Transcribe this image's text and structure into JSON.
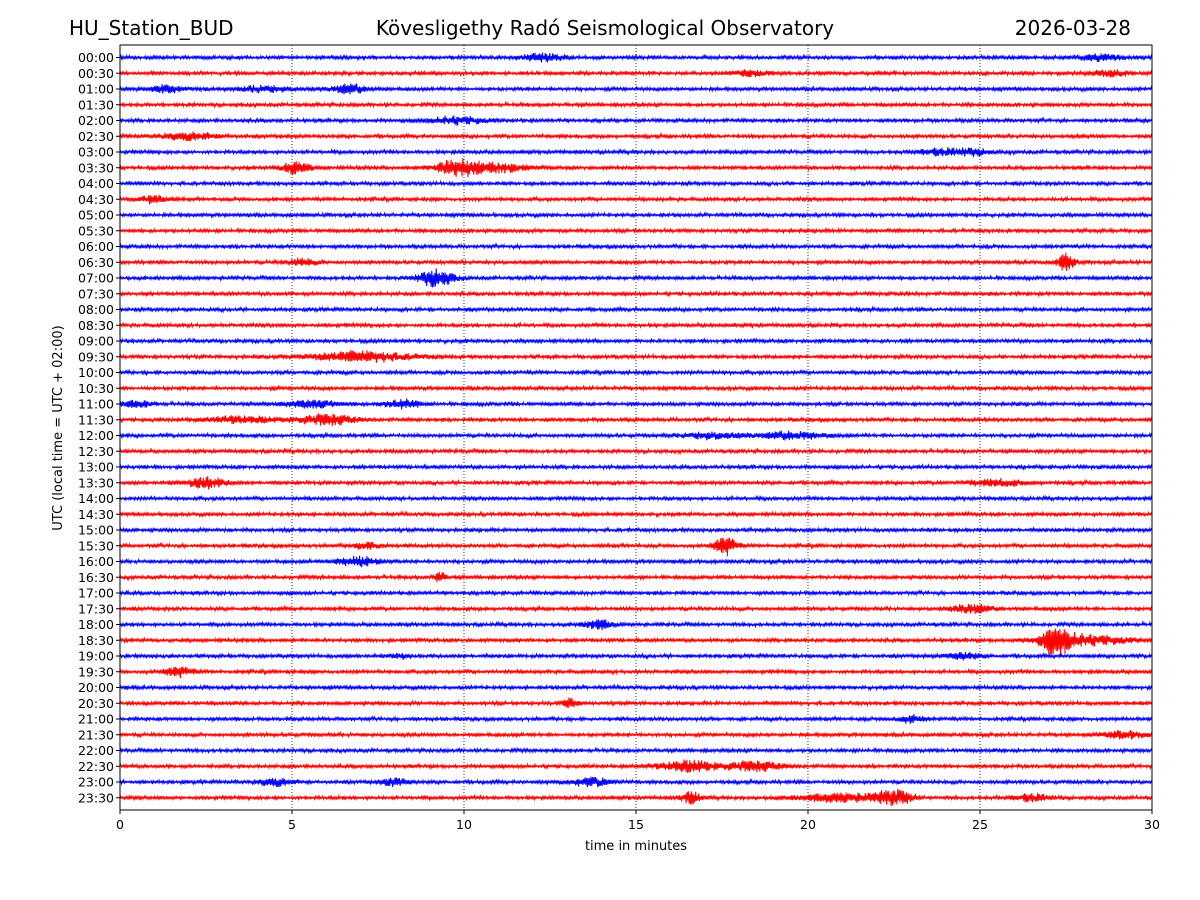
{
  "header": {
    "station": "HU_Station_BUD",
    "observatory": "Kövesligethy Radó Seismological Observatory",
    "date": "2026-03-28"
  },
  "chart_data": {
    "type": "line",
    "subtype": "helicorder",
    "xlabel": "time in minutes",
    "ylabel": "UTC (local time = UTC + 02:00)",
    "xlim": [
      0,
      30
    ],
    "x_ticks": [
      "0",
      "5",
      "10",
      "15",
      "20",
      "25",
      "30"
    ],
    "x_tick_values": [
      0,
      5,
      10,
      15,
      20,
      25,
      30
    ],
    "grid": "vertical dotted at major x ticks",
    "colors": [
      "#0000ff",
      "#ff0000"
    ],
    "row_labels": [
      "00:00",
      "00:30",
      "01:00",
      "01:30",
      "02:00",
      "02:30",
      "03:00",
      "03:30",
      "04:00",
      "04:30",
      "05:00",
      "05:30",
      "06:00",
      "06:30",
      "07:00",
      "07:30",
      "08:00",
      "08:30",
      "09:00",
      "09:30",
      "10:00",
      "10:30",
      "11:00",
      "11:30",
      "12:00",
      "12:30",
      "13:00",
      "13:30",
      "14:00",
      "14:30",
      "15:00",
      "15:30",
      "16:00",
      "16:30",
      "17:00",
      "17:30",
      "18:00",
      "18:30",
      "19:00",
      "19:30",
      "20:00",
      "20:30",
      "21:00",
      "21:30",
      "22:00",
      "22:30",
      "23:00",
      "23:30"
    ],
    "noise_amplitude": 0.18,
    "events": [
      {
        "row": 0,
        "t": 12.3,
        "amp": 0.45,
        "dur": 0.6
      },
      {
        "row": 0,
        "t": 28.5,
        "amp": 0.4,
        "dur": 0.5
      },
      {
        "row": 1,
        "t": 18.3,
        "amp": 0.3,
        "dur": 0.5
      },
      {
        "row": 1,
        "t": 28.8,
        "amp": 0.35,
        "dur": 0.5
      },
      {
        "row": 2,
        "t": 1.3,
        "amp": 0.35,
        "dur": 0.5
      },
      {
        "row": 2,
        "t": 4.2,
        "amp": 0.3,
        "dur": 0.8
      },
      {
        "row": 2,
        "t": 6.7,
        "amp": 0.5,
        "dur": 0.5
      },
      {
        "row": 4,
        "t": 9.8,
        "amp": 0.4,
        "dur": 0.8
      },
      {
        "row": 5,
        "t": 2.0,
        "amp": 0.4,
        "dur": 0.8
      },
      {
        "row": 6,
        "t": 23.8,
        "amp": 0.35,
        "dur": 0.6
      },
      {
        "row": 6,
        "t": 24.8,
        "amp": 0.35,
        "dur": 0.5
      },
      {
        "row": 7,
        "t": 5.1,
        "amp": 0.7,
        "dur": 0.4
      },
      {
        "row": 7,
        "t": 9.8,
        "amp": 1.0,
        "dur": 0.6
      },
      {
        "row": 7,
        "t": 11.0,
        "amp": 0.5,
        "dur": 0.8
      },
      {
        "row": 9,
        "t": 1.0,
        "amp": 0.4,
        "dur": 0.4
      },
      {
        "row": 13,
        "t": 5.3,
        "amp": 0.4,
        "dur": 0.4
      },
      {
        "row": 13,
        "t": 27.5,
        "amp": 0.9,
        "dur": 0.25
      },
      {
        "row": 14,
        "t": 9.2,
        "amp": 1.0,
        "dur": 0.5
      },
      {
        "row": 19,
        "t": 7.0,
        "amp": 0.55,
        "dur": 1.5
      },
      {
        "row": 22,
        "t": 0.5,
        "amp": 0.4,
        "dur": 0.4
      },
      {
        "row": 22,
        "t": 8.2,
        "amp": 0.5,
        "dur": 0.5
      },
      {
        "row": 22,
        "t": 5.6,
        "amp": 0.4,
        "dur": 0.8
      },
      {
        "row": 23,
        "t": 6.0,
        "amp": 0.6,
        "dur": 0.8
      },
      {
        "row": 23,
        "t": 3.5,
        "amp": 0.35,
        "dur": 1.0
      },
      {
        "row": 24,
        "t": 19.5,
        "amp": 0.45,
        "dur": 0.8
      },
      {
        "row": 24,
        "t": 17.2,
        "amp": 0.35,
        "dur": 0.8
      },
      {
        "row": 27,
        "t": 2.5,
        "amp": 0.55,
        "dur": 0.6
      },
      {
        "row": 27,
        "t": 25.5,
        "amp": 0.35,
        "dur": 0.8
      },
      {
        "row": 31,
        "t": 17.6,
        "amp": 1.1,
        "dur": 0.3
      },
      {
        "row": 31,
        "t": 7.2,
        "amp": 0.35,
        "dur": 0.4
      },
      {
        "row": 32,
        "t": 6.9,
        "amp": 0.55,
        "dur": 0.6
      },
      {
        "row": 33,
        "t": 9.3,
        "amp": 0.6,
        "dur": 0.15
      },
      {
        "row": 35,
        "t": 24.8,
        "amp": 0.45,
        "dur": 0.6
      },
      {
        "row": 36,
        "t": 13.9,
        "amp": 0.5,
        "dur": 0.4
      },
      {
        "row": 37,
        "t": 27.2,
        "amp": 1.4,
        "dur": 0.4
      },
      {
        "row": 37,
        "t": 28.0,
        "amp": 0.6,
        "dur": 1.2
      },
      {
        "row": 38,
        "t": 24.5,
        "amp": 0.4,
        "dur": 0.5
      },
      {
        "row": 38,
        "t": 8.1,
        "amp": 0.35,
        "dur": 0.2
      },
      {
        "row": 39,
        "t": 1.7,
        "amp": 0.55,
        "dur": 0.4
      },
      {
        "row": 41,
        "t": 13.1,
        "amp": 0.6,
        "dur": 0.2
      },
      {
        "row": 42,
        "t": 23.0,
        "amp": 0.35,
        "dur": 0.4
      },
      {
        "row": 43,
        "t": 29.2,
        "amp": 0.4,
        "dur": 0.6
      },
      {
        "row": 45,
        "t": 16.5,
        "amp": 0.6,
        "dur": 0.8
      },
      {
        "row": 45,
        "t": 18.4,
        "amp": 0.55,
        "dur": 0.8
      },
      {
        "row": 46,
        "t": 4.5,
        "amp": 0.4,
        "dur": 0.5
      },
      {
        "row": 46,
        "t": 8.0,
        "amp": 0.45,
        "dur": 0.4
      },
      {
        "row": 46,
        "t": 13.7,
        "amp": 0.45,
        "dur": 0.6
      },
      {
        "row": 47,
        "t": 16.6,
        "amp": 0.6,
        "dur": 0.3
      },
      {
        "row": 47,
        "t": 21.0,
        "amp": 0.45,
        "dur": 1.2
      },
      {
        "row": 47,
        "t": 22.5,
        "amp": 0.8,
        "dur": 0.5
      },
      {
        "row": 47,
        "t": 26.5,
        "amp": 0.4,
        "dur": 0.5
      }
    ]
  }
}
